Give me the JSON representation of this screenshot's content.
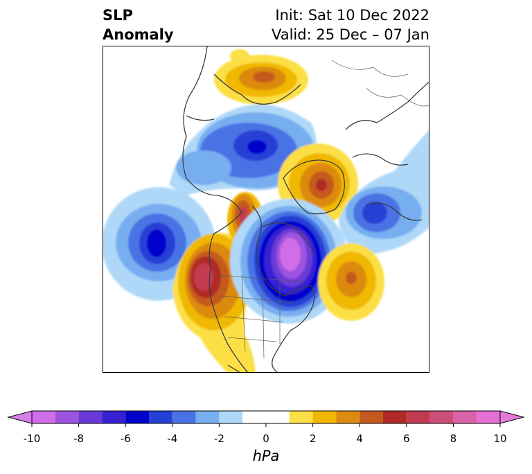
{
  "title": {
    "left_line1": "SLP",
    "left_line2": "Anomaly",
    "right_line1": "Init: Sat 10 Dec 2022",
    "right_line2": "Valid: 25 Dec – 07 Jan"
  },
  "colorbar": {
    "unit": "hPa",
    "ticks": [
      "-10",
      "-8",
      "-6",
      "-4",
      "-2",
      "0",
      "2",
      "4",
      "6",
      "8",
      "10"
    ],
    "levels": [
      -10,
      -9,
      -8,
      -7,
      -6,
      -5,
      -4,
      -3,
      -2,
      -1,
      1,
      2,
      3,
      4,
      5,
      6,
      7,
      8,
      9,
      10
    ],
    "colors": [
      "#cf6ee6",
      "#9e53df",
      "#6a3ad6",
      "#3520d2",
      "#0000cc",
      "#2740d6",
      "#4a72e4",
      "#77aef0",
      "#afd8f8",
      "#ffffff",
      "#fbdf44",
      "#f0b800",
      "#dc8a10",
      "#c45a1e",
      "#b02a28",
      "#c23a50",
      "#cc4c7a",
      "#d862a8",
      "#e472d4"
    ],
    "extend_low": "#d97ee8",
    "extend_high": "#e67ad8"
  },
  "anomalies": [
    {
      "name": "north-pacific-low",
      "sign": "negative",
      "peak_hpa": -6
    },
    {
      "name": "canada-low",
      "sign": "negative",
      "peak_hpa": -10
    },
    {
      "name": "west-coast-high",
      "sign": "positive",
      "peak_hpa": 8
    },
    {
      "name": "north-atlantic-high",
      "sign": "positive",
      "peak_hpa": 4
    },
    {
      "name": "siberia-low",
      "sign": "negative",
      "peak_hpa": -6
    },
    {
      "name": "europe-low",
      "sign": "negative",
      "peak_hpa": -4
    },
    {
      "name": "arctic-high",
      "sign": "positive",
      "peak_hpa": 6
    },
    {
      "name": "greenland-high",
      "sign": "positive",
      "peak_hpa": 6
    },
    {
      "name": "asia-high",
      "sign": "positive",
      "peak_hpa": 5
    }
  ]
}
